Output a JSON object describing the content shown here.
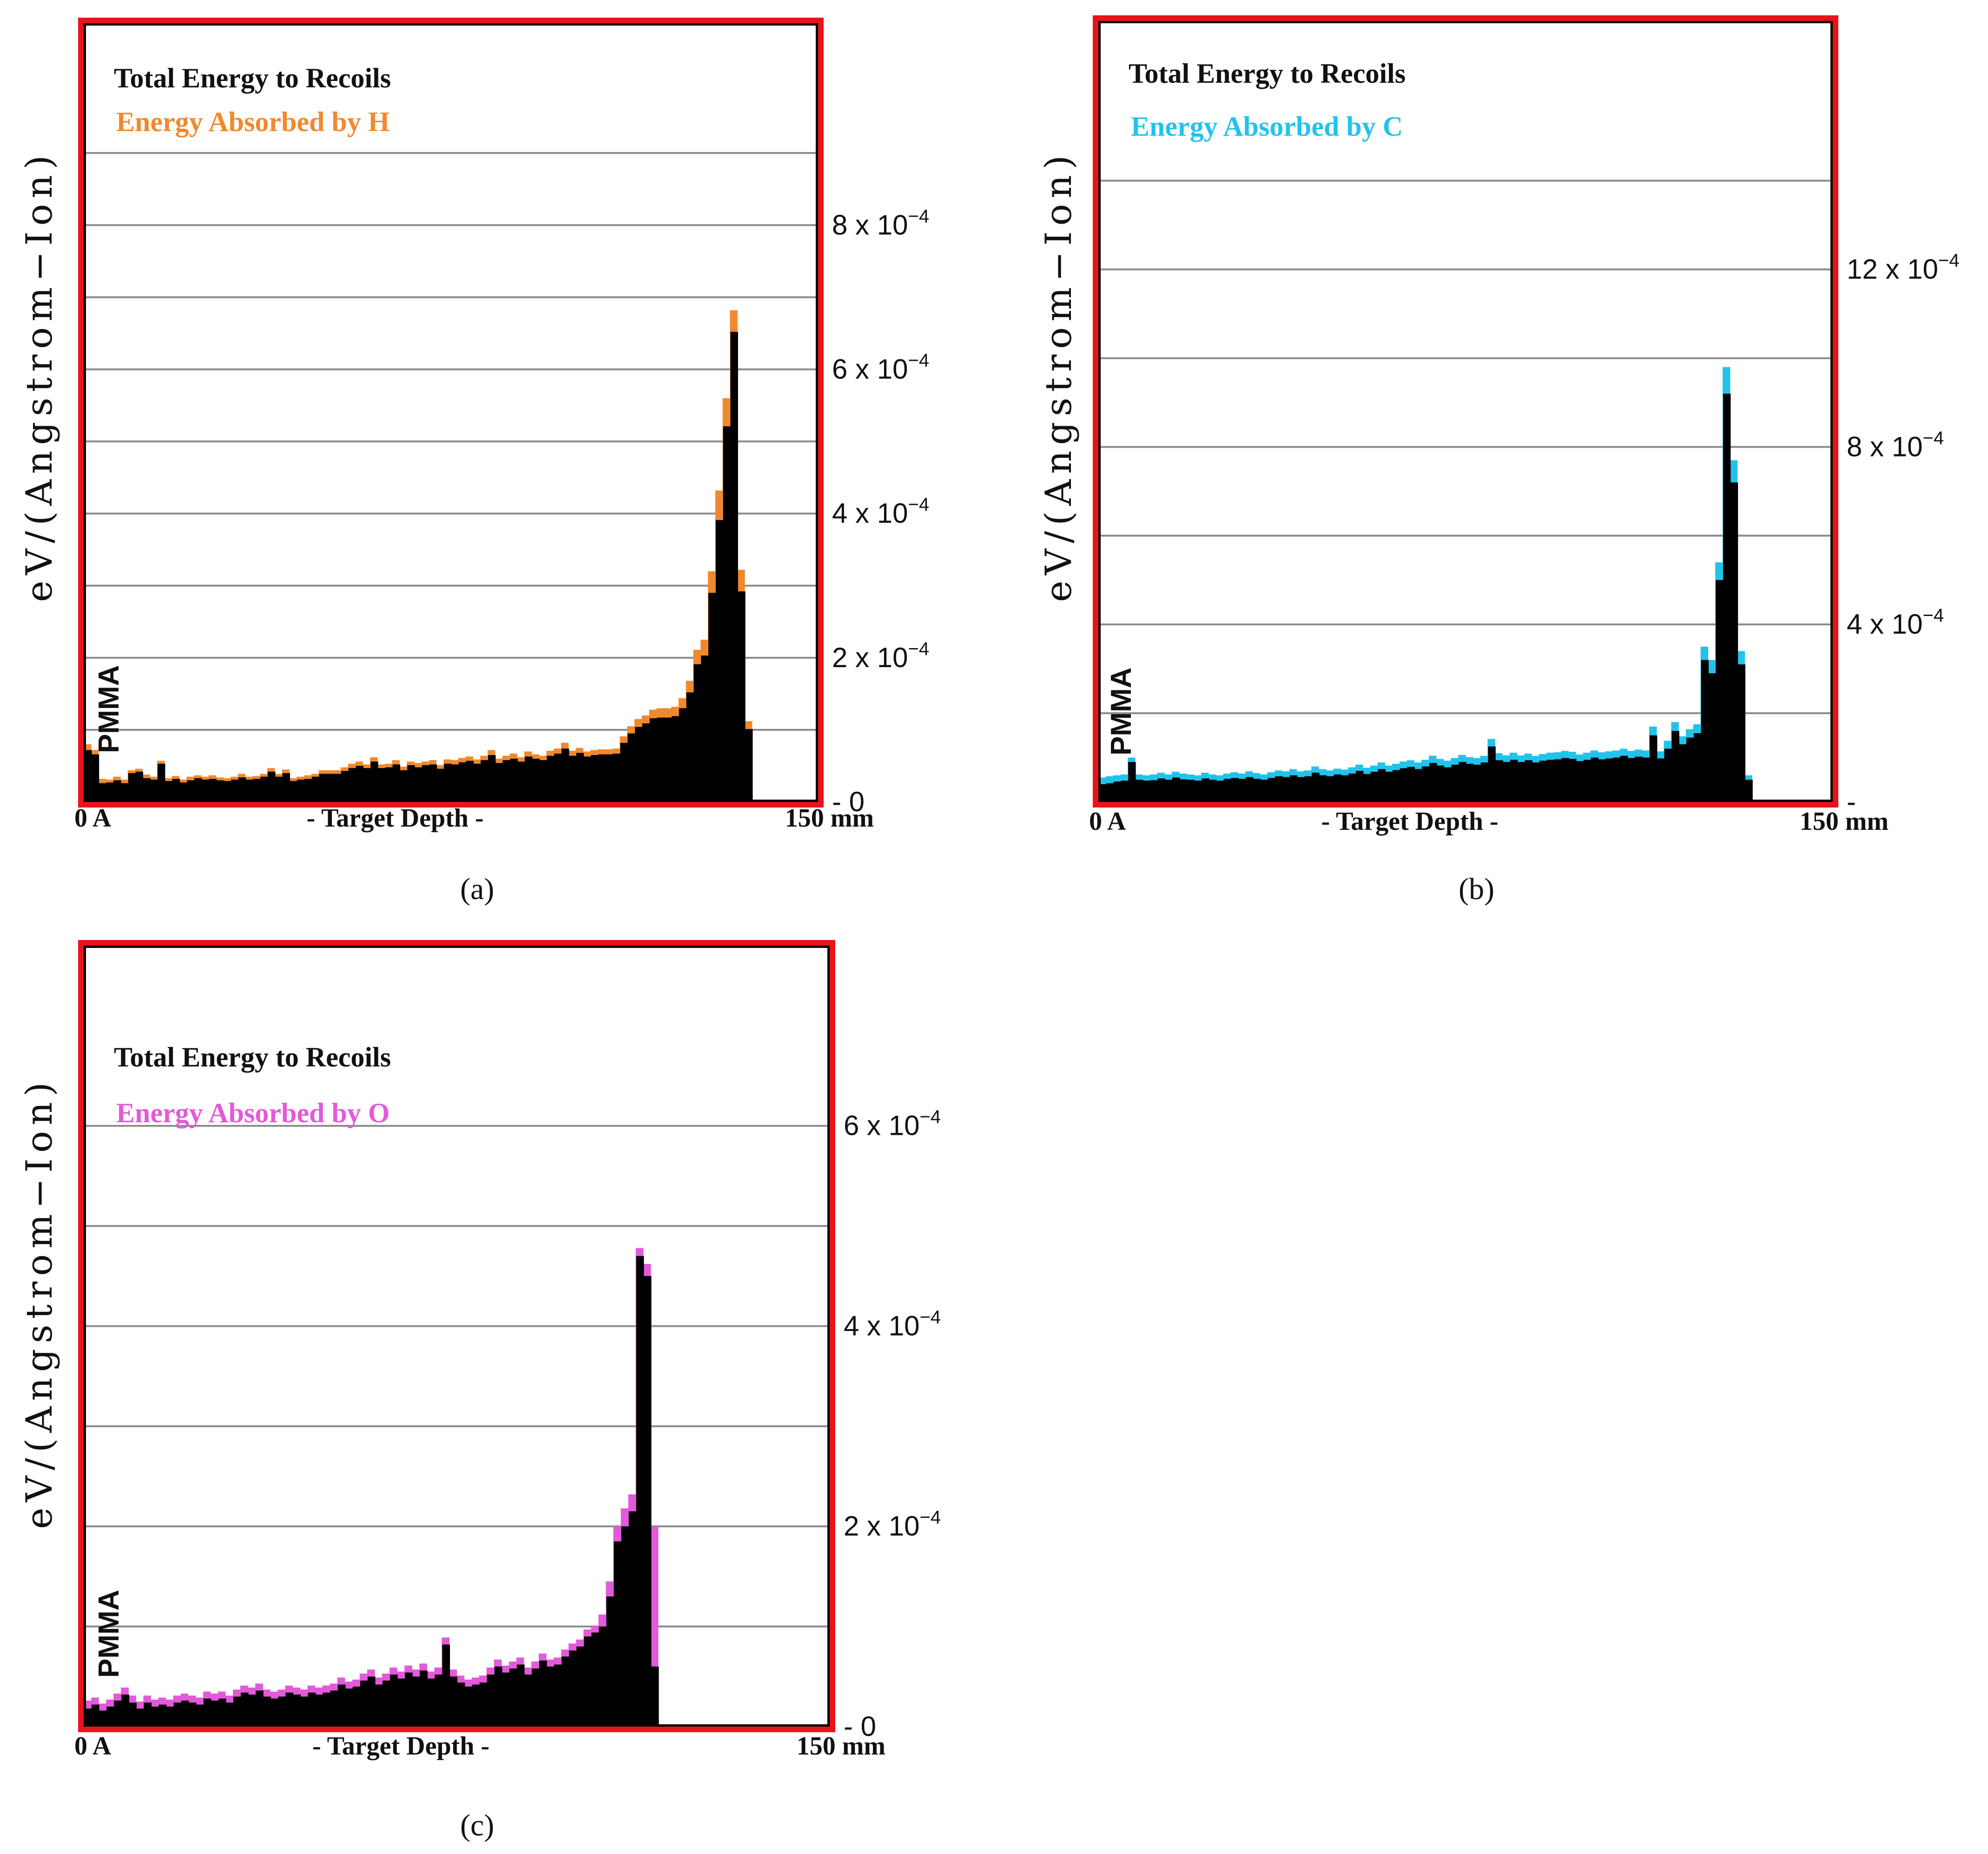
{
  "panels": [
    {
      "label": "(a)",
      "ylabel": "eV/(Angstrom−Ion)",
      "material": "PMMA",
      "legend": [
        "Total Energy to Recoils",
        "Energy Absorbed by H"
      ],
      "accent": "#f0892e",
      "frame_color": "#e8141a",
      "x_tick_labels": [
        "0 A",
        "- Target Depth -",
        "150 mm"
      ]
    },
    {
      "label": "(b)",
      "ylabel": "eV/(Angstrom−Ion)",
      "material": "PMMA",
      "legend": [
        "Total Energy to Recoils",
        "Energy Absorbed by C"
      ],
      "accent": "#22c3ea",
      "frame_color": "#e8141a",
      "x_tick_labels": [
        "0 A",
        "- Target Depth -",
        "150 mm"
      ]
    },
    {
      "label": "(c)",
      "ylabel": "eV/(Angstrom−Ion)",
      "material": "PMMA",
      "legend": [
        "Total Energy to Recoils",
        "Energy Absorbed by O"
      ],
      "accent": "#e25ad9",
      "frame_color": "#e8141a",
      "x_tick_labels": [
        "0 A",
        "- Target Depth -",
        "150 mm"
      ]
    }
  ],
  "chart_data": [
    {
      "type": "bar",
      "xlabel": "- Target Depth -",
      "ylabel": "eV/(Angstrom−Ion)",
      "xlim": [
        0,
        150
      ],
      "ylim": [
        0,
        0.00108
      ],
      "y_ticks": [
        {
          "value": 0,
          "mantissa": "0",
          "exp": ""
        },
        {
          "value": 0.0002,
          "mantissa": "2 x 10",
          "exp": "−4"
        },
        {
          "value": 0.0004,
          "mantissa": "4 x 10",
          "exp": "−4"
        },
        {
          "value": 0.0006,
          "mantissa": "6 x 10",
          "exp": "−4"
        },
        {
          "value": 0.0008,
          "mantissa": "8 x 10",
          "exp": "−4"
        }
      ],
      "gridlines": [
        0.0001,
        0.0002,
        0.0003,
        0.0004,
        0.0005,
        0.0006,
        0.0007,
        0.0008,
        0.0009
      ],
      "bin_width": 1.5,
      "series": [
        {
          "name": "Total Energy to Recoils",
          "values": [
            7.2e-05,
            6.6e-05,
            2.6e-05,
            2.7e-05,
            3e-05,
            2.6e-05,
            4e-05,
            4.2e-05,
            3.3e-05,
            3.1e-05,
            5.3e-05,
            2.9e-05,
            3.2e-05,
            2.7e-05,
            3e-05,
            3.3e-05,
            3.1e-05,
            3.2e-05,
            3e-05,
            2.9e-05,
            3.1e-05,
            3.4e-05,
            3.1e-05,
            3.2e-05,
            3.5e-05,
            4.2e-05,
            3.5e-05,
            4e-05,
            2.9e-05,
            3.1e-05,
            3.2e-05,
            3.5e-05,
            3.9e-05,
            3.9e-05,
            3.9e-05,
            4.3e-05,
            4.7e-05,
            5e-05,
            4.7e-05,
            5.6e-05,
            4.7e-05,
            4.8e-05,
            5.2e-05,
            4.4e-05,
            5.1e-05,
            4.8e-05,
            5.1e-05,
            5.2e-05,
            4.6e-05,
            5.3e-05,
            5.2e-05,
            5.5e-05,
            5.7e-05,
            5.3e-05,
            5.8e-05,
            6.5e-05,
            5.4e-05,
            5.8e-05,
            6e-05,
            5.6e-05,
            6.3e-05,
            6e-05,
            5.8e-05,
            6.4e-05,
            6.7e-05,
            7.4e-05,
            6.4e-05,
            6.8e-05,
            6.3e-05,
            6.5e-05,
            6.6e-05,
            6.6e-05,
            6.7e-05,
            8.2e-05,
            9.5e-05,
            0.000104,
            0.000109,
            0.000116,
            0.000117,
            0.000117,
            0.000119,
            0.00013,
            0.000152,
            0.000191,
            0.000203,
            0.00029,
            0.000391,
            0.000521,
            0.000652,
            0.000292,
            0.000101
          ],
          "accent_values": [
            8e-05,
            7.2e-05,
            3.2e-05,
            3.1e-05,
            3.5e-05,
            3.1e-05,
            4.4e-05,
            4.6e-05,
            3.8e-05,
            3.5e-05,
            5.7e-05,
            3.3e-05,
            3.6e-05,
            3.1e-05,
            3.5e-05,
            3.7e-05,
            3.5e-05,
            3.7e-05,
            3.4e-05,
            3.3e-05,
            3.5e-05,
            3.9e-05,
            3.5e-05,
            3.6e-05,
            3.9e-05,
            4.7e-05,
            3.9e-05,
            4.5e-05,
            3.3e-05,
            3.5e-05,
            3.7e-05,
            3.9e-05,
            4.4e-05,
            4.4e-05,
            4.4e-05,
            4.8e-05,
            5.3e-05,
            5.6e-05,
            5.2e-05,
            6.2e-05,
            5.2e-05,
            5.3e-05,
            5.8e-05,
            4.9e-05,
            5.6e-05,
            5.4e-05,
            5.6e-05,
            5.8e-05,
            5.1e-05,
            5.9e-05,
            5.8e-05,
            6.1e-05,
            6.3e-05,
            5.9e-05,
            6.4e-05,
            7.2e-05,
            6e-05,
            6.4e-05,
            6.7e-05,
            6.2e-05,
            7e-05,
            6.6e-05,
            6.4e-05,
            7.1e-05,
            7.4e-05,
            8.2e-05,
            7.1e-05,
            7.5e-05,
            7e-05,
            7.2e-05,
            7.3e-05,
            7.3e-05,
            7.4e-05,
            9.1e-05,
            0.000105,
            0.000115,
            0.00012,
            0.000128,
            0.00013,
            0.00013,
            0.000132,
            0.000144,
            0.000168,
            0.000211,
            0.000225,
            0.00032,
            0.000432,
            0.00056,
            0.000682,
            0.000322,
            0.000112
          ]
        }
      ]
    },
    {
      "type": "bar",
      "xlabel": "- Target Depth -",
      "ylabel": "eV/(Angstrom−Ion)",
      "xlim": [
        0,
        150
      ],
      "ylim": [
        0,
        0.00176
      ],
      "y_ticks": [
        {
          "value": 0,
          "mantissa": "-",
          "exp": ""
        },
        {
          "value": 0.0004,
          "mantissa": "4 x 10",
          "exp": "−4"
        },
        {
          "value": 0.0008,
          "mantissa": "8 x 10",
          "exp": "−4"
        },
        {
          "value": 0.0012,
          "mantissa": "12 x 10",
          "exp": "−4"
        }
      ],
      "gridlines": [
        0.0002,
        0.0004,
        0.0006,
        0.0008,
        0.001,
        0.0012,
        0.0014
      ],
      "bin_width": 1.5,
      "series": [
        {
          "name": "Total Energy to Recoils",
          "values": [
            4e-05,
            4.2e-05,
            4.6e-05,
            4.8e-05,
            9e-05,
            5e-05,
            4.8e-05,
            4.9e-05,
            5.3e-05,
            5e-05,
            5.5e-05,
            5.1e-05,
            5e-05,
            4.8e-05,
            5.3e-05,
            5e-05,
            4.8e-05,
            5.2e-05,
            5.4e-05,
            5.2e-05,
            5.6e-05,
            5.2e-05,
            5e-05,
            5.4e-05,
            5.8e-05,
            5.6e-05,
            6e-05,
            5.6e-05,
            5.8e-05,
            6.6e-05,
            6e-05,
            5.8e-05,
            6.2e-05,
            6e-05,
            6.4e-05,
            7e-05,
            6.3e-05,
            6.8e-05,
            7.4e-05,
            6.8e-05,
            7.2e-05,
            7.6e-05,
            7.9e-05,
            7.4e-05,
            8e-05,
            8.8e-05,
            8.2e-05,
            7.8e-05,
            8.4e-05,
            9e-05,
            8.6e-05,
            8.4e-05,
            8.9e-05,
            0.000125,
            9.4e-05,
            9e-05,
            9.5e-05,
            9e-05,
            9.4e-05,
            8.9e-05,
            9.3e-05,
            9.5e-05,
            9.6e-05,
            9.9e-05,
            9.7e-05,
            9.2e-05,
            9.5e-05,
            0.0001,
            9.6e-05,
            9.8e-05,
            0.0001,
            0.000104,
            9.9e-05,
            0.000102,
            0.0001,
            0.00015,
            9.8e-05,
            0.00012,
            0.00016,
            0.00013,
            0.000145,
            0.000155,
            0.00032,
            0.00029,
            0.0005,
            0.00092,
            0.00072,
            0.00031,
            5e-05
          ],
          "accent_values": [
            5.5e-05,
            5.8e-05,
            6e-05,
            6.2e-05,
            0.0001,
            6.2e-05,
            6e-05,
            6.2e-05,
            6.6e-05,
            6.2e-05,
            6.8e-05,
            6.4e-05,
            6.2e-05,
            6e-05,
            6.6e-05,
            6.2e-05,
            6e-05,
            6.4e-05,
            6.7e-05,
            6.4e-05,
            6.9e-05,
            6.5e-05,
            6.2e-05,
            6.7e-05,
            7.1e-05,
            6.9e-05,
            7.4e-05,
            6.9e-05,
            7.1e-05,
            8e-05,
            7.4e-05,
            7.1e-05,
            7.5e-05,
            7.3e-05,
            7.8e-05,
            8.4e-05,
            7.7e-05,
            8.2e-05,
            8.9e-05,
            8.2e-05,
            8.6e-05,
            9.1e-05,
            9.4e-05,
            8.9e-05,
            9.5e-05,
            0.000104,
            9.7e-05,
            9.3e-05,
            9.9e-05,
            0.000106,
            0.000101,
            9.9e-05,
            0.000104,
            0.000142,
            0.00011,
            0.000105,
            0.000111,
            0.000105,
            0.000109,
            0.000104,
            0.000108,
            0.000111,
            0.000112,
            0.000115,
            0.000113,
            0.000107,
            0.000111,
            0.000116,
            0.000112,
            0.000114,
            0.000116,
            0.00012,
            0.000115,
            0.000118,
            0.000116,
            0.00017,
            0.000114,
            0.000138,
            0.00018,
            0.000148,
            0.000164,
            0.000175,
            0.00035,
            0.00032,
            0.00054,
            0.00098,
            0.00077,
            0.00034,
            6e-05
          ]
        }
      ]
    },
    {
      "type": "bar",
      "xlabel": "- Target Depth -",
      "ylabel": "eV/(Angstrom−Ion)",
      "xlim": [
        0,
        150
      ],
      "ylim": [
        0,
        0.00078
      ],
      "y_ticks": [
        {
          "value": 0,
          "mantissa": "0",
          "exp": ""
        },
        {
          "value": 0.0002,
          "mantissa": "2 x 10",
          "exp": "−4"
        },
        {
          "value": 0.0004,
          "mantissa": "4 x 10",
          "exp": "−4"
        },
        {
          "value": 0.0006,
          "mantissa": "6 x 10",
          "exp": "−4"
        }
      ],
      "gridlines": [
        0.0001,
        0.0002,
        0.0003,
        0.0004,
        0.0005,
        0.0006
      ],
      "bin_width": 1.5,
      "series": [
        {
          "name": "Total Energy to Recoils",
          "values": [
            1.8e-05,
            2.2e-05,
            1.6e-05,
            2e-05,
            2.6e-05,
            3.2e-05,
            2.4e-05,
            1.8e-05,
            2.4e-05,
            2e-05,
            2.2e-05,
            2e-05,
            2.4e-05,
            2.6e-05,
            2.4e-05,
            2.2e-05,
            2.8e-05,
            2.6e-05,
            2.8e-05,
            2.4e-05,
            3e-05,
            3.4e-05,
            3.2e-05,
            3.6e-05,
            3e-05,
            2.8e-05,
            3e-05,
            3.4e-05,
            3.2e-05,
            3e-05,
            3.4e-05,
            3.2e-05,
            3.4e-05,
            3.6e-05,
            4.2e-05,
            3.8e-05,
            4e-05,
            4.6e-05,
            5e-05,
            4.2e-05,
            4.6e-05,
            5.2e-05,
            4.8e-05,
            5.4e-05,
            5e-05,
            5.6e-05,
            4.8e-05,
            5.2e-05,
            8.2e-05,
            5e-05,
            4.4e-05,
            4e-05,
            4.2e-05,
            4.4e-05,
            5.2e-05,
            6e-05,
            5.4e-05,
            5.8e-05,
            6.2e-05,
            5.2e-05,
            5.8e-05,
            6.6e-05,
            6e-05,
            6.2e-05,
            7e-05,
            7.6e-05,
            8e-05,
            9e-05,
            9.4e-05,
            0.0001,
            0.00013,
            0.000185,
            0.0002,
            0.000215,
            0.00047,
            0.00045,
            6e-05
          ],
          "accent_values": [
            2.6e-05,
            2.9e-05,
            2.3e-05,
            2.7e-05,
            3.3e-05,
            3.9e-05,
            3.1e-05,
            2.5e-05,
            3.1e-05,
            2.7e-05,
            2.9e-05,
            2.7e-05,
            3.1e-05,
            3.3e-05,
            3.1e-05,
            2.9e-05,
            3.5e-05,
            3.3e-05,
            3.5e-05,
            3.1e-05,
            3.7e-05,
            4.1e-05,
            3.9e-05,
            4.3e-05,
            3.7e-05,
            3.5e-05,
            3.7e-05,
            4.1e-05,
            3.9e-05,
            3.7e-05,
            4.1e-05,
            3.9e-05,
            4.1e-05,
            4.3e-05,
            4.9e-05,
            4.5e-05,
            4.7e-05,
            5.3e-05,
            5.7e-05,
            4.9e-05,
            5.3e-05,
            5.9e-05,
            5.5e-05,
            6.1e-05,
            5.7e-05,
            6.3e-05,
            5.5e-05,
            5.9e-05,
            8.9e-05,
            5.7e-05,
            5.1e-05,
            4.7e-05,
            4.9e-05,
            5.1e-05,
            5.9e-05,
            6.7e-05,
            6.1e-05,
            6.5e-05,
            6.9e-05,
            5.9e-05,
            6.5e-05,
            7.3e-05,
            6.7e-05,
            6.9e-05,
            7.7e-05,
            8.3e-05,
            8.7e-05,
            9.7e-05,
            0.000101,
            0.000112,
            0.000145,
            0.0002,
            0.000218,
            0.000232,
            0.000478,
            0.000462,
            0.0002
          ]
        }
      ]
    }
  ]
}
